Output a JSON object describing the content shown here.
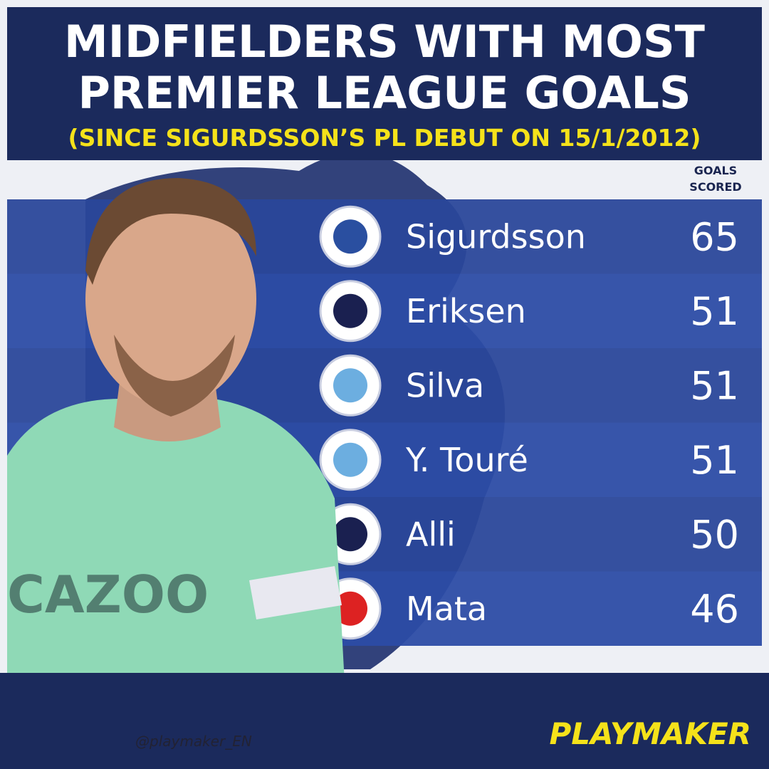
{
  "header": {
    "title": [
      "MIDFIELDERS WITH MOST",
      "PREMIER LEAGUE GOALS"
    ],
    "subtitle": "(SINCE SIGURDSSON’S PL DEBUT ON 15/1/2012)"
  },
  "table": {
    "column_header": [
      "GOALS",
      "SCORED"
    ],
    "rows": [
      [
        "Sigurdsson",
        65
      ],
      [
        "Eriksen",
        51
      ],
      [
        "Silva",
        51
      ],
      [
        "Y. Touré",
        51
      ],
      [
        "Alli",
        50
      ],
      [
        "Mata",
        46
      ]
    ]
  },
  "footer": {
    "handle": "@playmaker_EN",
    "brand": "PLAYMAKER"
  }
}
